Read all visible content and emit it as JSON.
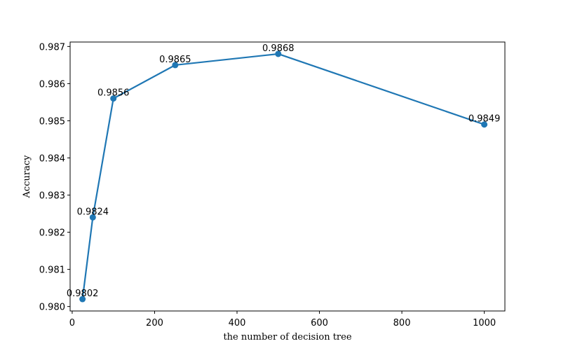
{
  "chart_data": {
    "type": "line",
    "title": "",
    "xlabel": "the number of decision tree",
    "ylabel": "Accuracy",
    "x": [
      25,
      50,
      100,
      250,
      500,
      1000
    ],
    "series": [
      {
        "values": [
          0.9802,
          0.9824,
          0.9856,
          0.9865,
          0.9868,
          0.9849
        ],
        "labels": [
          "0.9802",
          "0.9824",
          "0.9856",
          "0.9865",
          "0.9868",
          "0.9849"
        ],
        "color": "#1f77b4",
        "marker": "circle"
      }
    ],
    "xlim": [
      -5,
      1050
    ],
    "ylim": [
      0.97988,
      0.98712
    ],
    "xticks": [
      0,
      200,
      400,
      600,
      800,
      1000
    ],
    "xtick_labels": [
      "0",
      "200",
      "400",
      "600",
      "800",
      "1000"
    ],
    "yticks": [
      0.98,
      0.981,
      0.982,
      0.983,
      0.984,
      0.985,
      0.986,
      0.987
    ],
    "ytick_labels": [
      "0.980",
      "0.981",
      "0.982",
      "0.983",
      "0.984",
      "0.985",
      "0.986",
      "0.987"
    ],
    "grid": false,
    "legend": false
  }
}
